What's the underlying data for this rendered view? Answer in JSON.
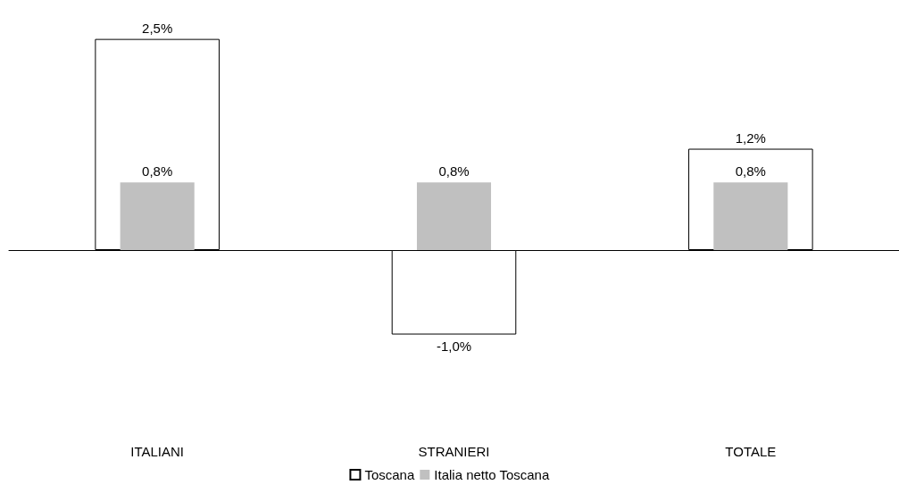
{
  "chart_data": {
    "type": "bar",
    "categories": [
      "ITALIANI",
      "STRANIERI",
      "TOTALE"
    ],
    "series": [
      {
        "name": "Toscana",
        "color": "#ffffff",
        "values": [
          2.5,
          -1.0,
          1.2
        ],
        "value_labels": [
          "2,5%",
          "-1,0%",
          "1,2%"
        ]
      },
      {
        "name": "Italia netto Toscana",
        "color": "#c0c0c0",
        "values": [
          0.8,
          0.8,
          0.8
        ],
        "value_labels": [
          "0,8%",
          "0,8%",
          "0,8%"
        ]
      }
    ],
    "legend": "bottom"
  }
}
